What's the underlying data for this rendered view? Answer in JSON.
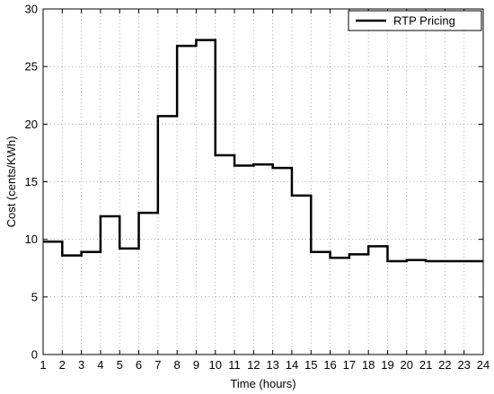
{
  "chart_data": {
    "type": "line",
    "step": "post",
    "xlabel": "Time (hours)",
    "ylabel": "Cost (cents/KWh)",
    "xlim": [
      1,
      24
    ],
    "ylim": [
      0,
      30
    ],
    "xticks": [
      1,
      2,
      3,
      4,
      5,
      6,
      7,
      8,
      9,
      10,
      11,
      12,
      13,
      14,
      15,
      16,
      17,
      18,
      19,
      20,
      21,
      22,
      23,
      24
    ],
    "yticks": [
      0,
      5,
      10,
      15,
      20,
      25,
      30
    ],
    "grid": true,
    "legend_position": "top-right",
    "series": [
      {
        "name": "RTP Pricing",
        "color": "#000000",
        "x": [
          1,
          2,
          3,
          4,
          5,
          6,
          7,
          8,
          9,
          10,
          11,
          12,
          13,
          14,
          15,
          16,
          17,
          18,
          19,
          20,
          21,
          22,
          23,
          24
        ],
        "y": [
          9.8,
          8.6,
          8.9,
          12.0,
          9.2,
          12.3,
          20.7,
          26.8,
          27.3,
          17.3,
          16.4,
          16.5,
          16.2,
          13.8,
          8.9,
          8.4,
          8.7,
          9.4,
          8.1,
          8.2,
          8.1,
          8.1,
          8.1,
          8.1
        ]
      }
    ]
  }
}
